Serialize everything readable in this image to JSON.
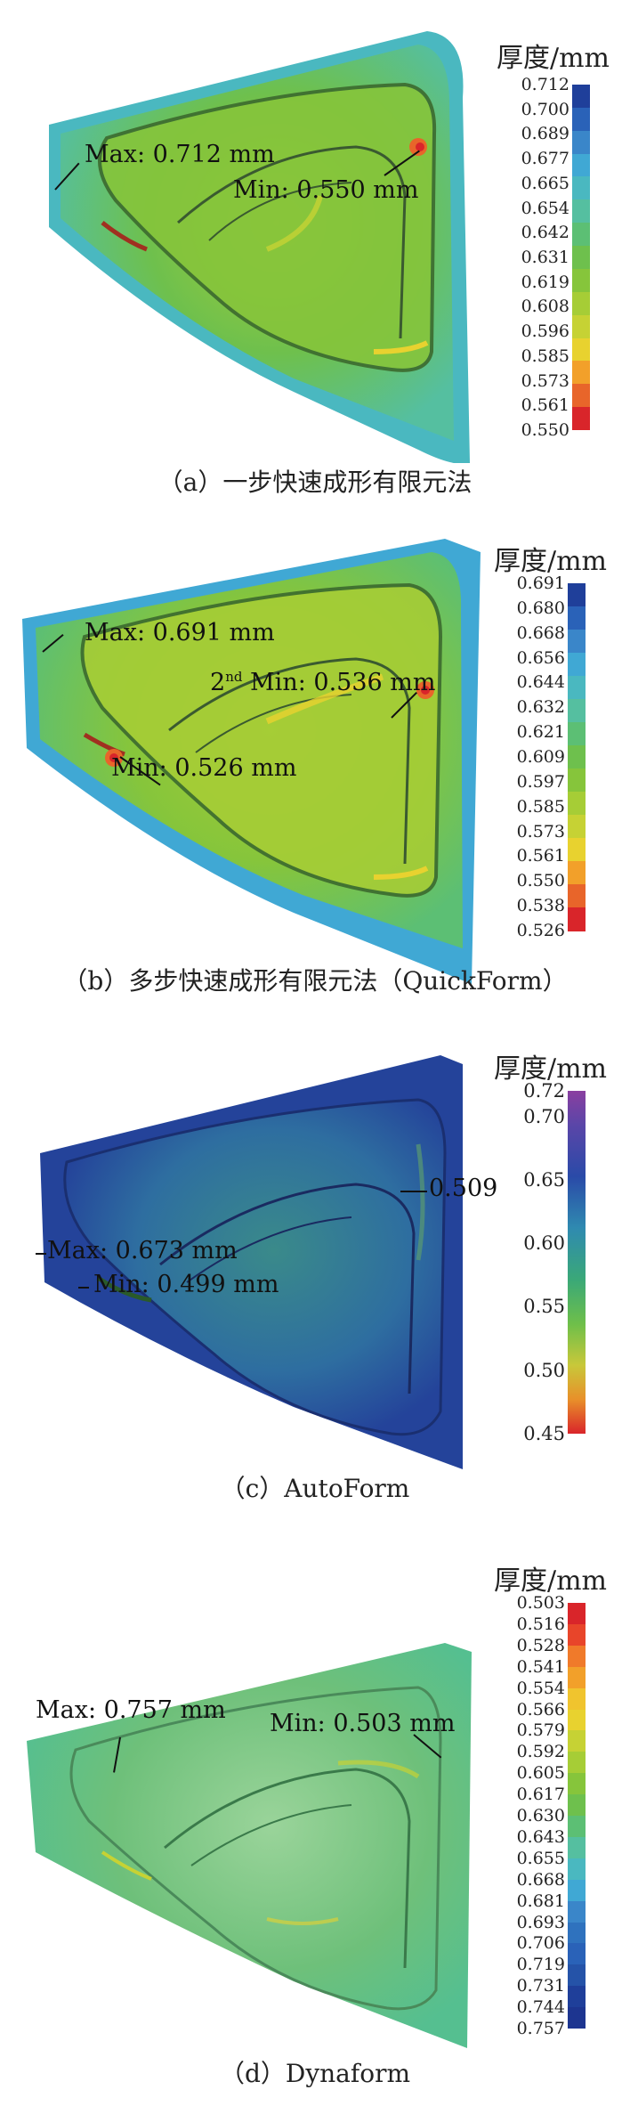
{
  "panels": [
    {
      "unit_label": "厚度/mm",
      "ticks": [
        "0.712",
        "0.700",
        "0.689",
        "0.677",
        "0.665",
        "0.654",
        "0.642",
        "0.631",
        "0.619",
        "0.608",
        "0.596",
        "0.585",
        "0.573",
        "0.561",
        "0.550"
      ],
      "colors": [
        "#1f3f9a",
        "#2a62b8",
        "#3a86c9",
        "#40a8d4",
        "#4ab8c0",
        "#55bfa0",
        "#5cbf74",
        "#6ec04d",
        "#86c53b",
        "#a6cd36",
        "#c6d234",
        "#e8d22f",
        "#f2a02a",
        "#e8652a",
        "#d9252a"
      ],
      "max_label": "Max: 0.712 mm",
      "min_label": "Min: 0.550 mm",
      "caption": "（a）一步快速成形有限元法"
    },
    {
      "unit_label": "厚度/mm",
      "ticks": [
        "0.691",
        "0.680",
        "0.668",
        "0.656",
        "0.644",
        "0.632",
        "0.621",
        "0.609",
        "0.597",
        "0.585",
        "0.573",
        "0.561",
        "0.550",
        "0.538",
        "0.526"
      ],
      "colors": [
        "#1f3f9a",
        "#2a62b8",
        "#3a86c9",
        "#40a8d4",
        "#4ab8c0",
        "#55bfa0",
        "#5cbf74",
        "#6ec04d",
        "#86c53b",
        "#a6cd36",
        "#c6d234",
        "#e8d22f",
        "#f2a02a",
        "#e8652a",
        "#d9252a"
      ],
      "max_label": "Max: 0.691 mm",
      "min2_prefix": "2",
      "min2_sup": "nd",
      "min2_label": " Min: 0.536 mm",
      "min_label": "Min: 0.526 mm",
      "caption": "（b）多步快速成形有限元法（QuickForm）"
    },
    {
      "unit_label": "厚度/mm",
      "ticks": [
        "0.72",
        "0.70",
        "0.65",
        "0.60",
        "0.55",
        "0.50",
        "0.45"
      ],
      "max_label": "Max: 0.673 mm",
      "min_label": "Min: 0.499 mm",
      "extra_label": "0.509",
      "caption": "（c）AutoForm"
    },
    {
      "unit_label": "厚度/mm",
      "ticks": [
        "0.503",
        "0.516",
        "0.528",
        "0.541",
        "0.554",
        "0.566",
        "0.579",
        "0.592",
        "0.605",
        "0.617",
        "0.630",
        "0.643",
        "0.655",
        "0.668",
        "0.681",
        "0.693",
        "0.706",
        "0.719",
        "0.731",
        "0.744",
        "0.757"
      ],
      "colors": [
        "#d9252a",
        "#e8452a",
        "#f07a2a",
        "#f2a02a",
        "#f0c42e",
        "#e8d22f",
        "#c6d234",
        "#a6cd36",
        "#86c53b",
        "#6ec04d",
        "#5cbf74",
        "#55bfa0",
        "#4ab8c0",
        "#40a8d4",
        "#3a86c9",
        "#2f72be",
        "#2a62b8",
        "#2553a8",
        "#1f3f9a",
        "#1d3590"
      ],
      "max_label": "Max: 0.757 mm",
      "min_label": "Min: 0.503 mm",
      "caption": "（d）Dynaform"
    }
  ]
}
